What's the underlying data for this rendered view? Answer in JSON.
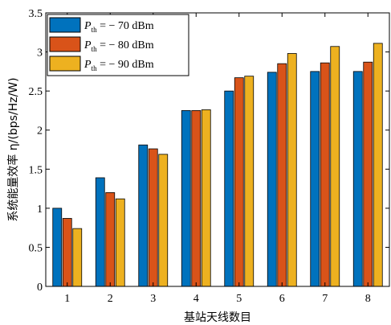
{
  "chart_data": {
    "type": "bar",
    "xlabel": "基站天线数目",
    "ylabel": "系统能量效率 η/(bps/Hz/W)",
    "ylim": [
      0,
      3.5
    ],
    "yticks": [
      "0",
      "0.5",
      "1",
      "1.5",
      "2",
      "2.5",
      "3",
      "3.5"
    ],
    "categories": [
      "1",
      "2",
      "3",
      "4",
      "5",
      "6",
      "7",
      "8"
    ],
    "legend_position": "top-left",
    "grid": false,
    "series": [
      {
        "name": "P th = − 70 dBm",
        "label_main": "P",
        "label_sub": "th",
        "label_rest": " = − 70 dBm",
        "color": "#0072BD",
        "values": [
          1.0,
          1.39,
          1.81,
          2.25,
          2.5,
          2.74,
          2.75,
          2.75
        ]
      },
      {
        "name": "P th = − 80 dBm",
        "label_main": "P",
        "label_sub": "th",
        "label_rest": " = − 80 dBm",
        "color": "#D95319",
        "values": [
          0.87,
          1.2,
          1.76,
          2.25,
          2.67,
          2.85,
          2.86,
          2.87
        ]
      },
      {
        "name": "P th = − 90 dBm",
        "label_main": "P",
        "label_sub": "th",
        "label_rest": " = − 90 dBm",
        "color": "#EDB120",
        "values": [
          0.74,
          1.12,
          1.69,
          2.26,
          2.69,
          2.98,
          3.07,
          3.11
        ]
      }
    ]
  }
}
